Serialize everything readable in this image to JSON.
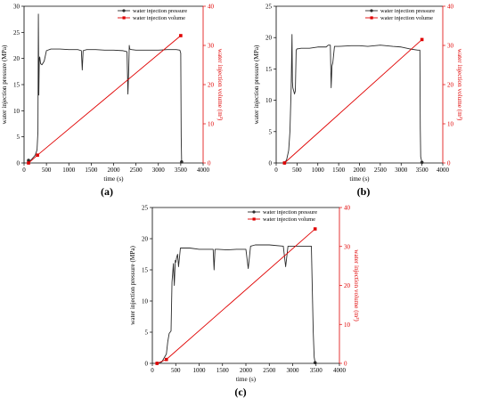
{
  "chart_data": [
    {
      "type": "line",
      "panel_label": "(a)",
      "xlabel": "time (s)",
      "ylabel": "water injection pressure (MPa)",
      "y2label": "water injection volume (m³)",
      "xlim": [
        0,
        4000
      ],
      "ylim": [
        0,
        30
      ],
      "y2lim": [
        0,
        40
      ],
      "xticks": [
        0,
        500,
        1000,
        1500,
        2000,
        2500,
        3000,
        3500,
        4000
      ],
      "yticks": [
        0,
        5,
        10,
        15,
        20,
        25,
        30
      ],
      "y2ticks": [
        0,
        10,
        20,
        30,
        40
      ],
      "legend_position": "top-center",
      "series": [
        {
          "name": "water injection pressure",
          "color": "#2b2b2b",
          "marker": "circle",
          "axis": "left",
          "x": [
            100,
            150,
            200,
            250,
            290,
            310,
            320,
            330,
            340,
            350,
            370,
            400,
            450,
            500,
            600,
            800,
            1000,
            1200,
            1280,
            1300,
            1320,
            1400,
            1600,
            1800,
            2000,
            2200,
            2300,
            2320,
            2340,
            2350,
            2360,
            2400,
            2500,
            2700,
            3000,
            3200,
            3400,
            3480,
            3500,
            3510,
            3520
          ],
          "y": [
            0.5,
            0.5,
            1.0,
            1.5,
            2.5,
            6.0,
            28.5,
            13.0,
            20.0,
            20.3,
            19.0,
            18.8,
            19.5,
            21.5,
            21.8,
            21.8,
            21.7,
            21.7,
            21.5,
            17.8,
            21.5,
            21.7,
            21.7,
            21.6,
            21.6,
            21.5,
            21.3,
            13.2,
            18.5,
            22.5,
            21.8,
            21.7,
            21.6,
            21.6,
            21.6,
            21.7,
            21.7,
            21.6,
            21.0,
            5.0,
            0.2
          ],
          "marker_points": [
            [
              100,
              0.5
            ],
            [
              3520,
              0.2
            ]
          ]
        },
        {
          "name": "water injection volume",
          "color": "#e00000",
          "marker": "square",
          "axis": "right",
          "x": [
            100,
            300,
            3500
          ],
          "y": [
            0,
            2.0,
            32.5
          ],
          "marker_points": [
            [
              100,
              0
            ],
            [
              300,
              2.0
            ],
            [
              3500,
              32.5
            ]
          ]
        }
      ]
    },
    {
      "type": "line",
      "panel_label": "(b)",
      "xlabel": "time (s)",
      "ylabel": "water injection pressure (MPa)",
      "y2label": "water injection volume (m³)",
      "xlim": [
        0,
        4000
      ],
      "ylim": [
        0,
        25
      ],
      "y2lim": [
        0,
        40
      ],
      "xticks": [
        0,
        500,
        1000,
        1500,
        2000,
        2500,
        3000,
        3500,
        4000
      ],
      "yticks": [
        0,
        5,
        10,
        15,
        20,
        25
      ],
      "y2ticks": [
        0,
        10,
        20,
        30,
        40
      ],
      "legend_position": "top-right",
      "series": [
        {
          "name": "water injection pressure",
          "color": "#2b2b2b",
          "marker": "circle",
          "axis": "left",
          "x": [
            200,
            250,
            300,
            330,
            360,
            380,
            390,
            400,
            420,
            440,
            460,
            480,
            500,
            520,
            600,
            800,
            1000,
            1200,
            1250,
            1300,
            1320,
            1340,
            1360,
            1400,
            1500,
            1800,
            2000,
            2200,
            2500,
            2800,
            3000,
            3200,
            3400,
            3450,
            3460,
            3470,
            3500
          ],
          "y": [
            0,
            0.5,
            2.0,
            5.0,
            12.0,
            20.5,
            13.0,
            12.0,
            11.5,
            11.0,
            11.5,
            18.0,
            18.2,
            18.2,
            18.3,
            18.3,
            18.5,
            18.5,
            18.8,
            18.8,
            12.0,
            15.5,
            16.0,
            18.6,
            18.6,
            18.7,
            18.7,
            18.6,
            18.8,
            18.6,
            18.5,
            18.2,
            18.0,
            18.0,
            5.5,
            1.0,
            0.1
          ],
          "marker_points": [
            [
              200,
              0
            ],
            [
              3500,
              0.1
            ]
          ]
        },
        {
          "name": "water injection volume",
          "color": "#e00000",
          "marker": "square",
          "axis": "right",
          "x": [
            200,
            3500
          ],
          "y": [
            0,
            31.5
          ],
          "marker_points": [
            [
              200,
              0
            ],
            [
              3500,
              31.5
            ]
          ]
        }
      ]
    },
    {
      "type": "line",
      "panel_label": "(c)",
      "xlabel": "time (s)",
      "ylabel": "water injection pressure (MPa)",
      "y2label": "water injection volume (m³)",
      "xlim": [
        0,
        4000
      ],
      "ylim": [
        0,
        25
      ],
      "y2lim": [
        0,
        40
      ],
      "xticks": [
        0,
        500,
        1000,
        1500,
        2000,
        2500,
        3000,
        3500,
        4000
      ],
      "yticks": [
        0,
        5,
        10,
        15,
        20,
        25
      ],
      "y2ticks": [
        0,
        10,
        20,
        30,
        40
      ],
      "legend_position": "top-right",
      "series": [
        {
          "name": "water injection pressure",
          "color": "#2b2b2b",
          "marker": "circle",
          "axis": "left",
          "x": [
            100,
            200,
            300,
            330,
            360,
            380,
            400,
            420,
            450,
            470,
            490,
            500,
            520,
            540,
            560,
            600,
            700,
            800,
            1000,
            1200,
            1300,
            1320,
            1340,
            1400,
            1600,
            1800,
            2000,
            2050,
            2100,
            2200,
            2500,
            2800,
            2850,
            2900,
            3000,
            3200,
            3400,
            3440,
            3460,
            3480
          ],
          "y": [
            0,
            0.2,
            1.5,
            3.5,
            4.8,
            5.0,
            5.2,
            13.0,
            16.0,
            12.5,
            16.5,
            16.2,
            17.0,
            17.5,
            15.5,
            18.5,
            18.5,
            18.5,
            18.3,
            18.3,
            18.3,
            15.0,
            18.3,
            18.3,
            18.2,
            18.3,
            18.3,
            15.2,
            18.8,
            19.0,
            19.0,
            18.8,
            15.5,
            18.8,
            18.8,
            18.8,
            18.8,
            5.0,
            1.0,
            0.1
          ],
          "marker_points": [
            [
              100,
              0
            ],
            [
              3480,
              0.1
            ]
          ]
        },
        {
          "name": "water injection volume",
          "color": "#e00000",
          "marker": "square",
          "axis": "right",
          "x": [
            100,
            300,
            3480
          ],
          "y": [
            0,
            1.0,
            34.5
          ],
          "marker_points": [
            [
              100,
              0
            ],
            [
              300,
              1.0
            ],
            [
              3480,
              34.5
            ]
          ]
        }
      ]
    }
  ]
}
